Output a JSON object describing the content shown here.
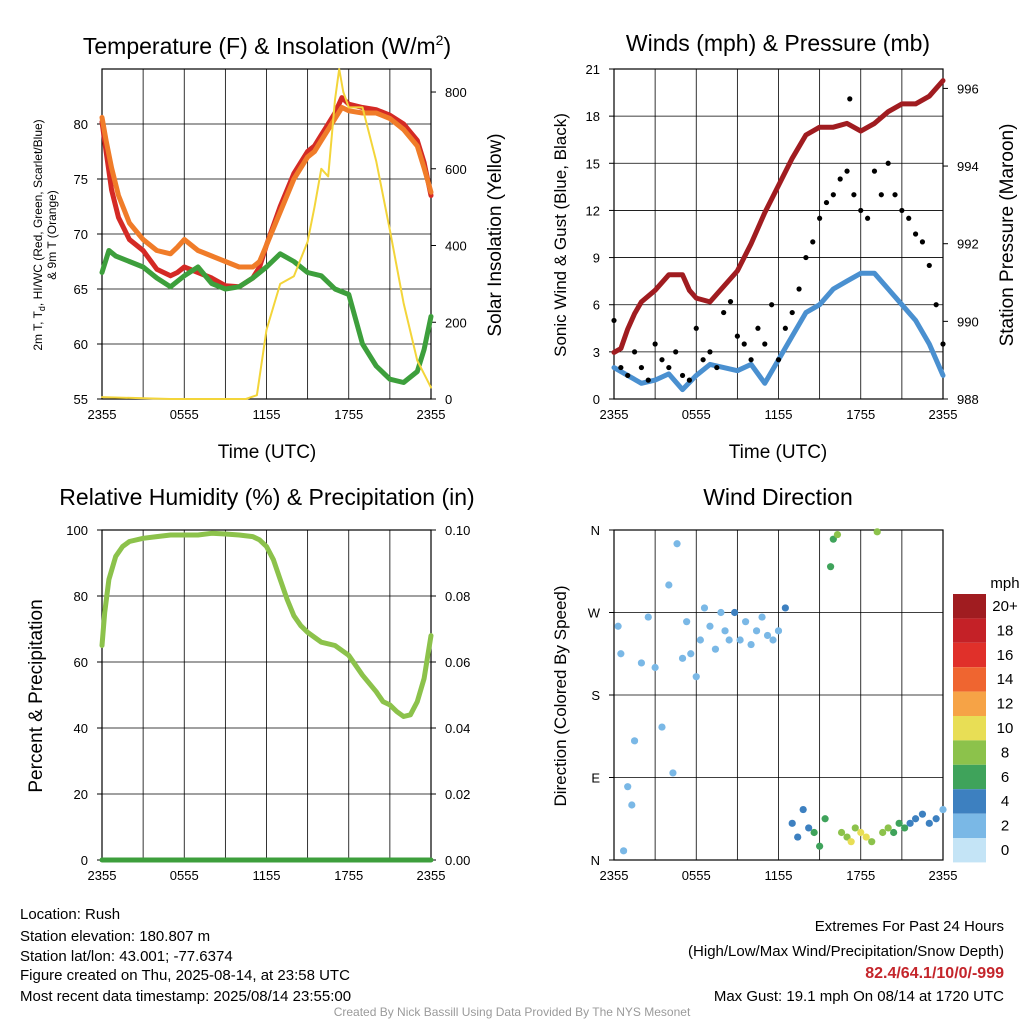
{
  "panels": {
    "temp": {
      "title": "Temperature (F) & Insolation (W/m",
      "title_sup": "2",
      "title_close": ")",
      "ylabel_left_1": "2m T, T",
      "ylabel_left_sub": "d",
      "ylabel_left_2": ", HI/WC (Red, Green, Scarlet/Blue)",
      "ylabel_left_3": "& 9m T (Orange)",
      "ylabel_right": "Solar Insolation (Yellow)",
      "xlabel": "Time (UTC)"
    },
    "winds": {
      "title": "Winds (mph) & Pressure (mb)",
      "ylabel_left": "Sonic Wind & Gust (Blue, Black)",
      "ylabel_right": "Station Pressure (Maroon)",
      "xlabel": "Time (UTC)"
    },
    "rh": {
      "title": "Relative Humidity (%) & Precipitation (in)",
      "ylabel_left": "Percent & Precipitation"
    },
    "wdir": {
      "title": "Wind Direction",
      "ylabel_left": "Direction (Colored By Speed)",
      "legend_title": "mph",
      "legend_labels": [
        "20+",
        "18",
        "16",
        "14",
        "12",
        "10",
        "8",
        "6",
        "4",
        "2",
        "0"
      ],
      "legend_colors": [
        "#a01c20",
        "#c42127",
        "#e0302a",
        "#ef6530",
        "#f6a346",
        "#e8de55",
        "#8cc24b",
        "#3fa35b",
        "#3d80c0",
        "#7ab8e6",
        "#c4e4f6"
      ]
    }
  },
  "info": {
    "location": "Location: Rush",
    "elevation": "Station elevation: 180.807 m",
    "latlon": "Station lat/lon: 43.001; -77.6374",
    "created": "Figure created on Thu, 2025-08-14, at 23:58 UTC",
    "recent": "Most recent data timestamp: 2025/08/14 23:55:00"
  },
  "extremes": {
    "heading": "Extremes For Past 24 Hours",
    "subheading": "(High/Low/Max Wind/Precipitation/Snow Depth)",
    "values": "82.4/64.1/10/0/-999",
    "values_color": "#c4252b",
    "max_gust": "Max Gust: 19.1 mph On 08/14 at 1720 UTC"
  },
  "credit": "Created By Nick Bassill Using Data Provided By The NYS Mesonet",
  "chart_data": [
    {
      "type": "line",
      "title": "Temperature (F) & Insolation (W/m2)",
      "xlabel": "Time (UTC)",
      "x_ticks": [
        "2355",
        "0555",
        "1155",
        "1755",
        "2355"
      ],
      "xlim": [
        0,
        24
      ],
      "ylim": [
        55,
        85
      ],
      "y_ticks": [
        55,
        60,
        65,
        70,
        75,
        80
      ],
      "ylim_right": [
        0,
        860
      ],
      "y_ticks_right": [
        0,
        200,
        400,
        600,
        800
      ],
      "series": [
        {
          "color": "#d42a25",
          "axis": "left",
          "x": [
            0,
            0.3,
            0.7,
            1.2,
            2,
            3,
            4,
            5,
            5.5,
            6,
            7,
            8,
            9,
            10,
            11,
            11.5,
            12,
            13,
            14,
            15,
            15.5,
            16,
            16.5,
            17,
            17.5,
            18,
            19,
            20,
            21,
            22,
            23,
            23.5,
            24
          ],
          "y": [
            80.2,
            77.5,
            74,
            71.5,
            69.5,
            68.5,
            66.8,
            66.2,
            66.5,
            67,
            66.5,
            66,
            65.3,
            65.2,
            66,
            67,
            69,
            72.5,
            75.5,
            77.5,
            78,
            79,
            80,
            81,
            82.4,
            81.8,
            81.5,
            81.3,
            80.8,
            80,
            78.5,
            76.5,
            73.5
          ]
        },
        {
          "color": "#f07c29",
          "axis": "left",
          "x": [
            0,
            0.3,
            0.7,
            1.2,
            2,
            3,
            4,
            5,
            5.5,
            6,
            7,
            8,
            9,
            10,
            11,
            11.5,
            12,
            13,
            14,
            15,
            15.5,
            16,
            16.5,
            17,
            17.5,
            18,
            19,
            20,
            21,
            22,
            23,
            23.5,
            24
          ],
          "y": [
            80.6,
            78.5,
            76,
            73.5,
            71,
            69.5,
            68.5,
            68.2,
            68.8,
            69.5,
            68.5,
            68,
            67.5,
            67,
            67,
            67.5,
            69,
            72,
            75,
            77,
            77.5,
            78.5,
            79.5,
            80.5,
            81.5,
            81.2,
            81,
            81,
            80.5,
            79.5,
            78,
            76,
            73.8
          ]
        },
        {
          "color": "#3d9f3c",
          "axis": "left",
          "x": [
            0,
            0.5,
            1,
            2,
            3,
            4,
            5,
            6,
            7,
            8,
            9,
            10,
            11,
            12,
            13,
            14,
            15,
            16,
            17,
            18,
            19,
            20,
            21,
            22,
            23,
            23.5,
            24
          ],
          "y": [
            66.5,
            68.5,
            68,
            67.5,
            67,
            66,
            65.2,
            66.2,
            67,
            65.5,
            65,
            65.2,
            66,
            67,
            68.2,
            67.5,
            66.5,
            66.2,
            65,
            64.5,
            60,
            58,
            56.8,
            56.5,
            57.5,
            59.5,
            62.5
          ]
        },
        {
          "color": "#f3d53a",
          "axis": "right",
          "x": [
            0,
            5,
            9,
            10.5,
            11.3,
            12,
            13,
            14,
            15,
            15.5,
            16,
            16.5,
            17,
            17.3,
            17.6,
            18,
            19,
            20,
            21,
            22,
            23,
            24
          ],
          "y": [
            5,
            0,
            0,
            0,
            10,
            180,
            300,
            320,
            410,
            500,
            600,
            580,
            780,
            860,
            800,
            760,
            760,
            620,
            440,
            250,
            100,
            30
          ]
        }
      ]
    },
    {
      "type": "line",
      "title": "Winds (mph) & Pressure (mb)",
      "xlabel": "Time (UTC)",
      "x_ticks": [
        "2355",
        "0555",
        "1155",
        "1755",
        "2355"
      ],
      "xlim": [
        0,
        24
      ],
      "ylim": [
        0,
        21
      ],
      "y_ticks": [
        0,
        3,
        6,
        9,
        12,
        15,
        18,
        21
      ],
      "ylim_right": [
        988,
        996.5
      ],
      "y_ticks_right": [
        988,
        990,
        992,
        994,
        996
      ],
      "series": [
        {
          "color": "#a01c20",
          "axis": "right",
          "x": [
            0,
            0.5,
            1,
            1.5,
            2,
            3,
            4,
            5,
            5.5,
            6,
            7,
            8,
            9,
            10,
            11,
            12,
            13,
            14,
            15,
            16,
            17,
            18,
            19,
            20,
            21,
            22,
            23,
            24
          ],
          "y": [
            989.2,
            989.3,
            989.8,
            990.2,
            990.5,
            990.8,
            991.2,
            991.2,
            990.8,
            990.6,
            990.5,
            990.9,
            991.3,
            992,
            992.8,
            993.5,
            994.2,
            994.8,
            995,
            995,
            995.1,
            994.9,
            995.1,
            995.4,
            995.6,
            995.6,
            995.8,
            996.2
          ]
        },
        {
          "color": "#4a90d0",
          "axis": "left",
          "x": [
            0,
            1,
            2,
            3,
            4,
            5,
            6,
            7,
            8,
            9,
            10,
            11,
            12,
            13,
            14,
            15,
            16,
            17,
            18,
            19,
            20,
            21,
            22,
            23,
            24
          ],
          "y": [
            2,
            1.5,
            1,
            1.2,
            1.6,
            0.6,
            1.5,
            2.2,
            2,
            1.8,
            2.2,
            1,
            2.5,
            4,
            5.5,
            6,
            7,
            7.5,
            8,
            8,
            7,
            6,
            5,
            3.5,
            1.5
          ]
        },
        {
          "color": "#000000",
          "axis": "left",
          "scatter": true,
          "x": [
            0,
            0.5,
            1,
            1.5,
            2,
            2.5,
            3,
            3.5,
            4,
            4.5,
            5,
            5.5,
            6,
            6.5,
            7,
            7.5,
            8,
            8.5,
            9,
            9.5,
            10,
            10.5,
            11,
            11.5,
            12,
            12.5,
            13,
            13.5,
            14,
            14.5,
            15,
            15.5,
            16,
            16.5,
            17,
            17.2,
            17.5,
            18,
            18.5,
            19,
            19.5,
            20,
            20.5,
            21,
            21.5,
            22,
            22.5,
            23,
            23.5,
            24
          ],
          "y": [
            5,
            2,
            1.5,
            3,
            2,
            1.2,
            3.5,
            2.5,
            2,
            3,
            1.5,
            1.2,
            4.5,
            2.5,
            3,
            2,
            5.5,
            6.2,
            4,
            3.5,
            2.5,
            4.5,
            3.5,
            6,
            2.5,
            4.5,
            5.5,
            7,
            9,
            10,
            11.5,
            12.5,
            13,
            14,
            14.5,
            19.1,
            13,
            12,
            11.5,
            14.5,
            13,
            15,
            13,
            12,
            11.5,
            10.5,
            10,
            8.5,
            6,
            3.5
          ]
        }
      ]
    },
    {
      "type": "line",
      "title": "Relative Humidity (%) & Precipitation (in)",
      "x_ticks": [
        "2355",
        "0555",
        "1155",
        "1755",
        "2355"
      ],
      "xlim": [
        0,
        24
      ],
      "ylim": [
        0,
        100
      ],
      "y_ticks": [
        0,
        20,
        40,
        60,
        80,
        100
      ],
      "ylim_right": [
        0,
        0.1
      ],
      "y_ticks_right": [
        0.0,
        0.02,
        0.04,
        0.06,
        0.08,
        0.1
      ],
      "series": [
        {
          "color": "#8cc24b",
          "axis": "left",
          "x": [
            0,
            0.2,
            0.5,
            1,
            1.5,
            2,
            3,
            4,
            5,
            6,
            7,
            8,
            9,
            10,
            11,
            11.5,
            12,
            12.5,
            13,
            13.5,
            14,
            14.5,
            15,
            15.5,
            16,
            17,
            18,
            19,
            20,
            20.5,
            21,
            21.5,
            22,
            22.5,
            23,
            23.5,
            24
          ],
          "y": [
            65,
            75,
            85,
            92,
            95,
            96.5,
            97.5,
            98,
            98.5,
            98.5,
            98.5,
            99,
            98.8,
            98.5,
            98,
            97,
            95,
            91,
            85,
            79,
            74,
            71,
            69,
            67.5,
            66,
            65,
            62,
            56,
            51,
            48,
            47,
            45,
            43.5,
            44,
            48,
            55,
            68
          ]
        },
        {
          "color": "#3d9f3c",
          "axis": "right",
          "x": [
            0,
            24
          ],
          "y": [
            0,
            0
          ]
        }
      ]
    },
    {
      "type": "scatter",
      "title": "Wind Direction",
      "x_ticks": [
        "2355",
        "0555",
        "1155",
        "1755",
        "2355"
      ],
      "xlim": [
        0,
        24
      ],
      "y_categories": [
        "N",
        "E",
        "S",
        "W",
        "N"
      ],
      "ylim": [
        0,
        360
      ],
      "y_ticks": [
        0,
        90,
        180,
        270,
        360
      ],
      "points": [
        {
          "x": 0.3,
          "y": 255,
          "s": 1.5
        },
        {
          "x": 0.5,
          "y": 225,
          "s": 1
        },
        {
          "x": 0.7,
          "y": 10,
          "s": 2
        },
        {
          "x": 1,
          "y": 80,
          "s": 1
        },
        {
          "x": 1.3,
          "y": 60,
          "s": 1
        },
        {
          "x": 1.5,
          "y": 130,
          "s": 1
        },
        {
          "x": 2,
          "y": 215,
          "s": 1
        },
        {
          "x": 2.5,
          "y": 265,
          "s": 1
        },
        {
          "x": 3,
          "y": 210,
          "s": 1
        },
        {
          "x": 3.5,
          "y": 145,
          "s": 1
        },
        {
          "x": 4,
          "y": 300,
          "s": 1
        },
        {
          "x": 4.3,
          "y": 95,
          "s": 1
        },
        {
          "x": 4.6,
          "y": 345,
          "s": 2.5
        },
        {
          "x": 5,
          "y": 220,
          "s": 1
        },
        {
          "x": 5.3,
          "y": 260,
          "s": 1
        },
        {
          "x": 5.6,
          "y": 225,
          "s": 1.5
        },
        {
          "x": 6,
          "y": 200,
          "s": 1
        },
        {
          "x": 6.3,
          "y": 240,
          "s": 2
        },
        {
          "x": 6.6,
          "y": 275,
          "s": 1
        },
        {
          "x": 7,
          "y": 255,
          "s": 2
        },
        {
          "x": 7.4,
          "y": 230,
          "s": 2
        },
        {
          "x": 7.8,
          "y": 270,
          "s": 1
        },
        {
          "x": 8.1,
          "y": 250,
          "s": 2.5
        },
        {
          "x": 8.4,
          "y": 240,
          "s": 2
        },
        {
          "x": 8.8,
          "y": 270,
          "s": 3
        },
        {
          "x": 9.2,
          "y": 240,
          "s": 2
        },
        {
          "x": 9.6,
          "y": 260,
          "s": 2.5
        },
        {
          "x": 10,
          "y": 235,
          "s": 2
        },
        {
          "x": 10.4,
          "y": 250,
          "s": 2
        },
        {
          "x": 10.8,
          "y": 265,
          "s": 2
        },
        {
          "x": 11.2,
          "y": 245,
          "s": 2.5
        },
        {
          "x": 11.6,
          "y": 240,
          "s": 2
        },
        {
          "x": 12,
          "y": 250,
          "s": 2
        },
        {
          "x": 12.5,
          "y": 275,
          "s": 3
        },
        {
          "x": 13,
          "y": 40,
          "s": 4
        },
        {
          "x": 13.4,
          "y": 25,
          "s": 3.5
        },
        {
          "x": 13.8,
          "y": 55,
          "s": 4.5
        },
        {
          "x": 14.2,
          "y": 35,
          "s": 4
        },
        {
          "x": 14.6,
          "y": 30,
          "s": 5
        },
        {
          "x": 15,
          "y": 15,
          "s": 6
        },
        {
          "x": 15.4,
          "y": 45,
          "s": 5
        },
        {
          "x": 15.8,
          "y": 320,
          "s": 6.5
        },
        {
          "x": 16,
          "y": 350,
          "s": 6
        },
        {
          "x": 16.3,
          "y": 355,
          "s": 7
        },
        {
          "x": 16.6,
          "y": 30,
          "s": 7.5
        },
        {
          "x": 17,
          "y": 25,
          "s": 8
        },
        {
          "x": 17.3,
          "y": 20,
          "s": 9
        },
        {
          "x": 17.6,
          "y": 35,
          "s": 8.5
        },
        {
          "x": 18,
          "y": 30,
          "s": 9.5
        },
        {
          "x": 18.4,
          "y": 25,
          "s": 9
        },
        {
          "x": 18.8,
          "y": 20,
          "s": 8
        },
        {
          "x": 19.2,
          "y": 358,
          "s": 8
        },
        {
          "x": 19.6,
          "y": 30,
          "s": 7
        },
        {
          "x": 20,
          "y": 35,
          "s": 7
        },
        {
          "x": 20.4,
          "y": 30,
          "s": 6
        },
        {
          "x": 20.8,
          "y": 40,
          "s": 5.5
        },
        {
          "x": 21.2,
          "y": 35,
          "s": 6
        },
        {
          "x": 21.6,
          "y": 40,
          "s": 4.5
        },
        {
          "x": 22,
          "y": 45,
          "s": 4
        },
        {
          "x": 22.5,
          "y": 50,
          "s": 3.5
        },
        {
          "x": 23,
          "y": 40,
          "s": 3
        },
        {
          "x": 23.5,
          "y": 45,
          "s": 3
        },
        {
          "x": 24,
          "y": 55,
          "s": 2.5
        }
      ]
    }
  ]
}
